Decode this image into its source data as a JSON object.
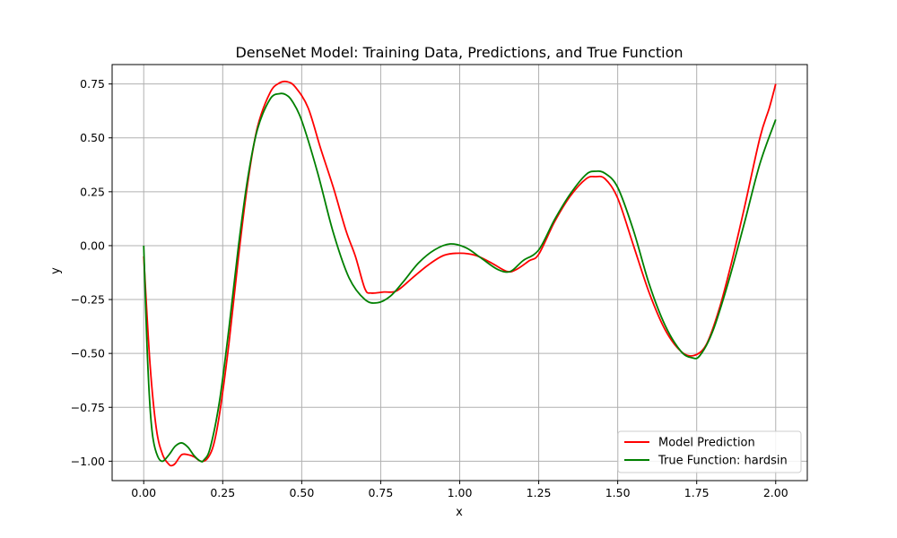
{
  "chart_data": {
    "type": "line",
    "title": "DenseNet Model: Training Data, Predictions, and True Function",
    "xlabel": "x",
    "ylabel": "y",
    "xlim": [
      -0.1,
      2.1
    ],
    "ylim": [
      -1.09,
      0.84
    ],
    "x_ticks": [
      0.0,
      0.25,
      0.5,
      0.75,
      1.0,
      1.25,
      1.5,
      1.75,
      2.0
    ],
    "x_tick_labels": [
      "0.00",
      "0.25",
      "0.50",
      "0.75",
      "1.00",
      "1.25",
      "1.50",
      "1.75",
      "2.00"
    ],
    "y_ticks": [
      -1.0,
      -0.75,
      -0.5,
      -0.25,
      0.0,
      0.25,
      0.5,
      0.75
    ],
    "y_tick_labels": [
      "−1.00",
      "−0.75",
      "−0.50",
      "−0.25",
      "0.00",
      "0.25",
      "0.50",
      "0.75"
    ],
    "grid": true,
    "legend_position": "bottom-right",
    "series": [
      {
        "name": "Model Prediction",
        "color": "#ff0000",
        "x": [
          0.0,
          0.02,
          0.04,
          0.06,
          0.08,
          0.09,
          0.1,
          0.12,
          0.14,
          0.16,
          0.18,
          0.2,
          0.22,
          0.24,
          0.27,
          0.3,
          0.33,
          0.36,
          0.4,
          0.43,
          0.455,
          0.48,
          0.52,
          0.56,
          0.6,
          0.64,
          0.67,
          0.7,
          0.72,
          0.76,
          0.8,
          0.85,
          0.9,
          0.95,
          1.0,
          1.05,
          1.1,
          1.15,
          1.18,
          1.22,
          1.25,
          1.3,
          1.35,
          1.4,
          1.43,
          1.46,
          1.5,
          1.55,
          1.6,
          1.65,
          1.7,
          1.74,
          1.78,
          1.82,
          1.86,
          1.9,
          1.95,
          1.98,
          2.0
        ],
        "y": [
          -0.05,
          -0.55,
          -0.85,
          -0.97,
          -1.015,
          -1.02,
          -1.01,
          -0.97,
          -0.97,
          -0.98,
          -1.0,
          -0.99,
          -0.93,
          -0.78,
          -0.45,
          -0.05,
          0.3,
          0.55,
          0.71,
          0.755,
          0.76,
          0.735,
          0.64,
          0.45,
          0.27,
          0.07,
          -0.05,
          -0.2,
          -0.22,
          -0.215,
          -0.21,
          -0.15,
          -0.09,
          -0.045,
          -0.035,
          -0.045,
          -0.08,
          -0.12,
          -0.11,
          -0.07,
          -0.04,
          0.11,
          0.23,
          0.31,
          0.32,
          0.31,
          0.22,
          0.0,
          -0.22,
          -0.39,
          -0.49,
          -0.51,
          -0.46,
          -0.3,
          -0.08,
          0.17,
          0.5,
          0.64,
          0.75
        ]
      },
      {
        "name": "True Function: hardsin",
        "color": "#008000",
        "x": [
          0.0,
          0.01,
          0.02,
          0.03,
          0.045,
          0.06,
          0.08,
          0.1,
          0.12,
          0.14,
          0.16,
          0.18,
          0.19,
          0.21,
          0.24,
          0.27,
          0.3,
          0.33,
          0.36,
          0.4,
          0.43,
          0.45,
          0.47,
          0.5,
          0.55,
          0.6,
          0.65,
          0.7,
          0.74,
          0.78,
          0.82,
          0.87,
          0.92,
          0.97,
          1.02,
          1.07,
          1.12,
          1.16,
          1.2,
          1.25,
          1.3,
          1.35,
          1.4,
          1.43,
          1.46,
          1.5,
          1.55,
          1.6,
          1.65,
          1.7,
          1.735,
          1.76,
          1.8,
          1.85,
          1.9,
          1.95,
          2.0
        ],
        "y": [
          0.0,
          -0.45,
          -0.75,
          -0.9,
          -0.98,
          -1.0,
          -0.97,
          -0.93,
          -0.915,
          -0.935,
          -0.975,
          -1.0,
          -0.995,
          -0.94,
          -0.72,
          -0.38,
          0.0,
          0.32,
          0.54,
          0.68,
          0.705,
          0.7,
          0.67,
          0.58,
          0.34,
          0.06,
          -0.15,
          -0.25,
          -0.265,
          -0.235,
          -0.17,
          -0.08,
          -0.02,
          0.008,
          -0.01,
          -0.06,
          -0.11,
          -0.12,
          -0.07,
          -0.02,
          0.12,
          0.24,
          0.33,
          0.345,
          0.335,
          0.27,
          0.07,
          -0.18,
          -0.37,
          -0.49,
          -0.52,
          -0.51,
          -0.4,
          -0.17,
          0.1,
          0.38,
          0.585
        ]
      }
    ]
  }
}
